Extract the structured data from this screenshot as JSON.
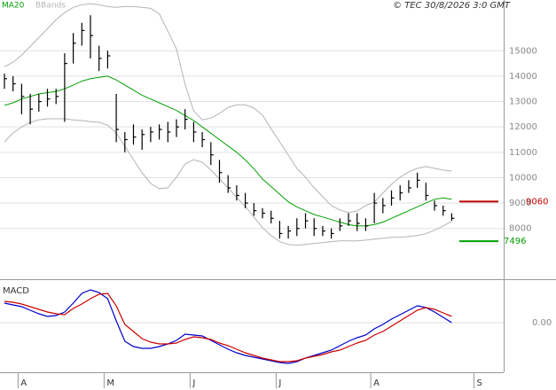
{
  "header": {
    "credit": "© TEC 30/8/2026 3:0 GMT"
  },
  "chart_data": [
    {
      "type": "ohlc",
      "high": [
        14100,
        14000,
        13700,
        13300,
        13300,
        13500,
        13500,
        14900,
        15700,
        16100,
        16400,
        15200,
        15000,
        13300,
        11800,
        12100,
        11900,
        12000,
        12100,
        12200,
        12300,
        12700,
        12200,
        11800,
        11400,
        10700,
        10100,
        9700,
        9400,
        9000,
        8800,
        8700,
        8300,
        8100,
        8400,
        8600,
        8400,
        8100,
        8000,
        8400,
        8600,
        8600,
        8400,
        9400,
        9200,
        9500,
        9700,
        9900,
        10200,
        9800,
        9100,
        8900,
        8600,
        null,
        null,
        null
      ],
      "low": [
        13500,
        13400,
        12500,
        12100,
        12600,
        12800,
        12900,
        12200,
        14500,
        15200,
        14700,
        14200,
        14300,
        11400,
        11000,
        11300,
        11100,
        11400,
        11500,
        11400,
        11600,
        11900,
        11400,
        11200,
        10500,
        9800,
        9400,
        9100,
        8800,
        8500,
        8400,
        8200,
        7600,
        7600,
        7700,
        8000,
        7700,
        7700,
        7600,
        7900,
        8100,
        7900,
        7900,
        8200,
        8600,
        8900,
        9100,
        9400,
        9600,
        9100,
        8700,
        8500,
        8300,
        null,
        null,
        null
      ],
      "close": [
        13900,
        13700,
        13200,
        12700,
        13000,
        13100,
        13200,
        14500,
        15300,
        15800,
        15600,
        14700,
        14800,
        11900,
        11500,
        11600,
        11700,
        11800,
        11900,
        11800,
        12000,
        12300,
        11800,
        11500,
        10900,
        10200,
        9600,
        9300,
        9000,
        8700,
        8600,
        8400,
        7800,
        7900,
        8000,
        8300,
        8000,
        7900,
        7800,
        8100,
        8300,
        8200,
        8100,
        9000,
        8900,
        9200,
        9400,
        9600,
        9900,
        9300,
        8900,
        8700,
        8400,
        null,
        null,
        null
      ],
      "color": "#000000",
      "series": [
        {
          "name": "MA20",
          "color": "#00a000",
          "values": [
            12850,
            12950,
            13100,
            13200,
            13300,
            13350,
            13400,
            13500,
            13650,
            13800,
            13900,
            13950,
            14000,
            13850,
            13650,
            13450,
            13250,
            13100,
            12950,
            12800,
            12650,
            12450,
            12250,
            12000,
            11750,
            11500,
            11250,
            11000,
            10700,
            10350,
            9950,
            9650,
            9350,
            9050,
            8850,
            8700,
            8550,
            8450,
            8350,
            8250,
            8150,
            8100,
            8100,
            8150,
            8250,
            8400,
            8550,
            8700,
            8850,
            9000,
            9150,
            9200,
            9150,
            null,
            null,
            null
          ]
        },
        {
          "name": "BBands",
          "color": "#b4b4b4",
          "upper": [
            14370,
            14550,
            14830,
            15170,
            15520,
            15870,
            16220,
            16500,
            16710,
            16810,
            16850,
            16810,
            16740,
            16710,
            16740,
            16740,
            16710,
            16670,
            16460,
            15770,
            15070,
            13680,
            12630,
            12280,
            12350,
            12530,
            12770,
            12870,
            12870,
            12740,
            12460,
            11930,
            11410,
            10890,
            10370,
            10020,
            9600,
            9250,
            8900,
            8730,
            8620,
            8690,
            8900,
            9040,
            9390,
            9740,
            10020,
            10230,
            10370,
            10440,
            10370,
            10300,
            10260,
            null,
            null,
            null
          ],
          "lower": [
            11410,
            11760,
            12000,
            12180,
            12280,
            12320,
            12320,
            12320,
            12280,
            12250,
            12210,
            12180,
            12070,
            11760,
            11240,
            10710,
            10190,
            9770,
            9570,
            9600,
            10020,
            10540,
            10710,
            10610,
            10300,
            9950,
            9600,
            9220,
            8870,
            8450,
            8030,
            7720,
            7480,
            7370,
            7340,
            7370,
            7410,
            7440,
            7480,
            7510,
            7510,
            7510,
            7540,
            7580,
            7610,
            7650,
            7650,
            7680,
            7720,
            7790,
            7930,
            8100,
            8280,
            null,
            null,
            null
          ]
        }
      ],
      "markers": [
        {
          "value": 9060,
          "color": "#c00000"
        },
        {
          "value": 7496,
          "color": "#00a000"
        }
      ],
      "ylim": [
        6000,
        17000
      ],
      "yticks": [
        8000,
        9000,
        10000,
        11000,
        12000,
        13000,
        14000,
        15000
      ],
      "grid": true
    },
    {
      "type": "line",
      "title": "MACD",
      "categories": [
        null,
        null,
        "A",
        null,
        null,
        null,
        null,
        null,
        null,
        null,
        null,
        null,
        "M",
        null,
        null,
        null,
        null,
        null,
        null,
        null,
        null,
        null,
        "J",
        null,
        null,
        null,
        null,
        null,
        null,
        null,
        null,
        null,
        "J",
        null,
        null,
        null,
        null,
        null,
        null,
        null,
        null,
        null,
        null,
        "A",
        null,
        null,
        null,
        null,
        null,
        null,
        null,
        null,
        null,
        null,
        null,
        "S"
      ],
      "series": [
        {
          "color": "#0000cc",
          "values": [
            220,
            200,
            180,
            140,
            100,
            70,
            80,
            120,
            220,
            330,
            370,
            340,
            270,
            20,
            -210,
            -270,
            -290,
            -290,
            -270,
            -240,
            -200,
            -130,
            -140,
            -150,
            -200,
            -250,
            -300,
            -340,
            -370,
            -390,
            -410,
            -430,
            -450,
            -460,
            -440,
            -400,
            -370,
            -340,
            -310,
            -260,
            -210,
            -170,
            -140,
            -70,
            -20,
            40,
            90,
            140,
            190,
            170,
            120,
            60,
            0,
            null,
            null,
            null
          ]
        },
        {
          "color": "#cc0000",
          "values": [
            240,
            230,
            210,
            180,
            150,
            120,
            100,
            90,
            160,
            210,
            270,
            320,
            330,
            190,
            -20,
            -100,
            -180,
            -220,
            -240,
            -240,
            -230,
            -190,
            -160,
            -170,
            -190,
            -230,
            -260,
            -300,
            -340,
            -370,
            -400,
            -420,
            -440,
            -440,
            -430,
            -400,
            -380,
            -360,
            -330,
            -310,
            -270,
            -230,
            -200,
            -140,
            -100,
            -40,
            20,
            80,
            140,
            170,
            150,
            110,
            70,
            null,
            null,
            null
          ]
        }
      ],
      "ylim": [
        -560,
        460
      ],
      "yticks": [
        {
          "value": 0,
          "label": "0.00"
        }
      ],
      "grid": true
    }
  ]
}
